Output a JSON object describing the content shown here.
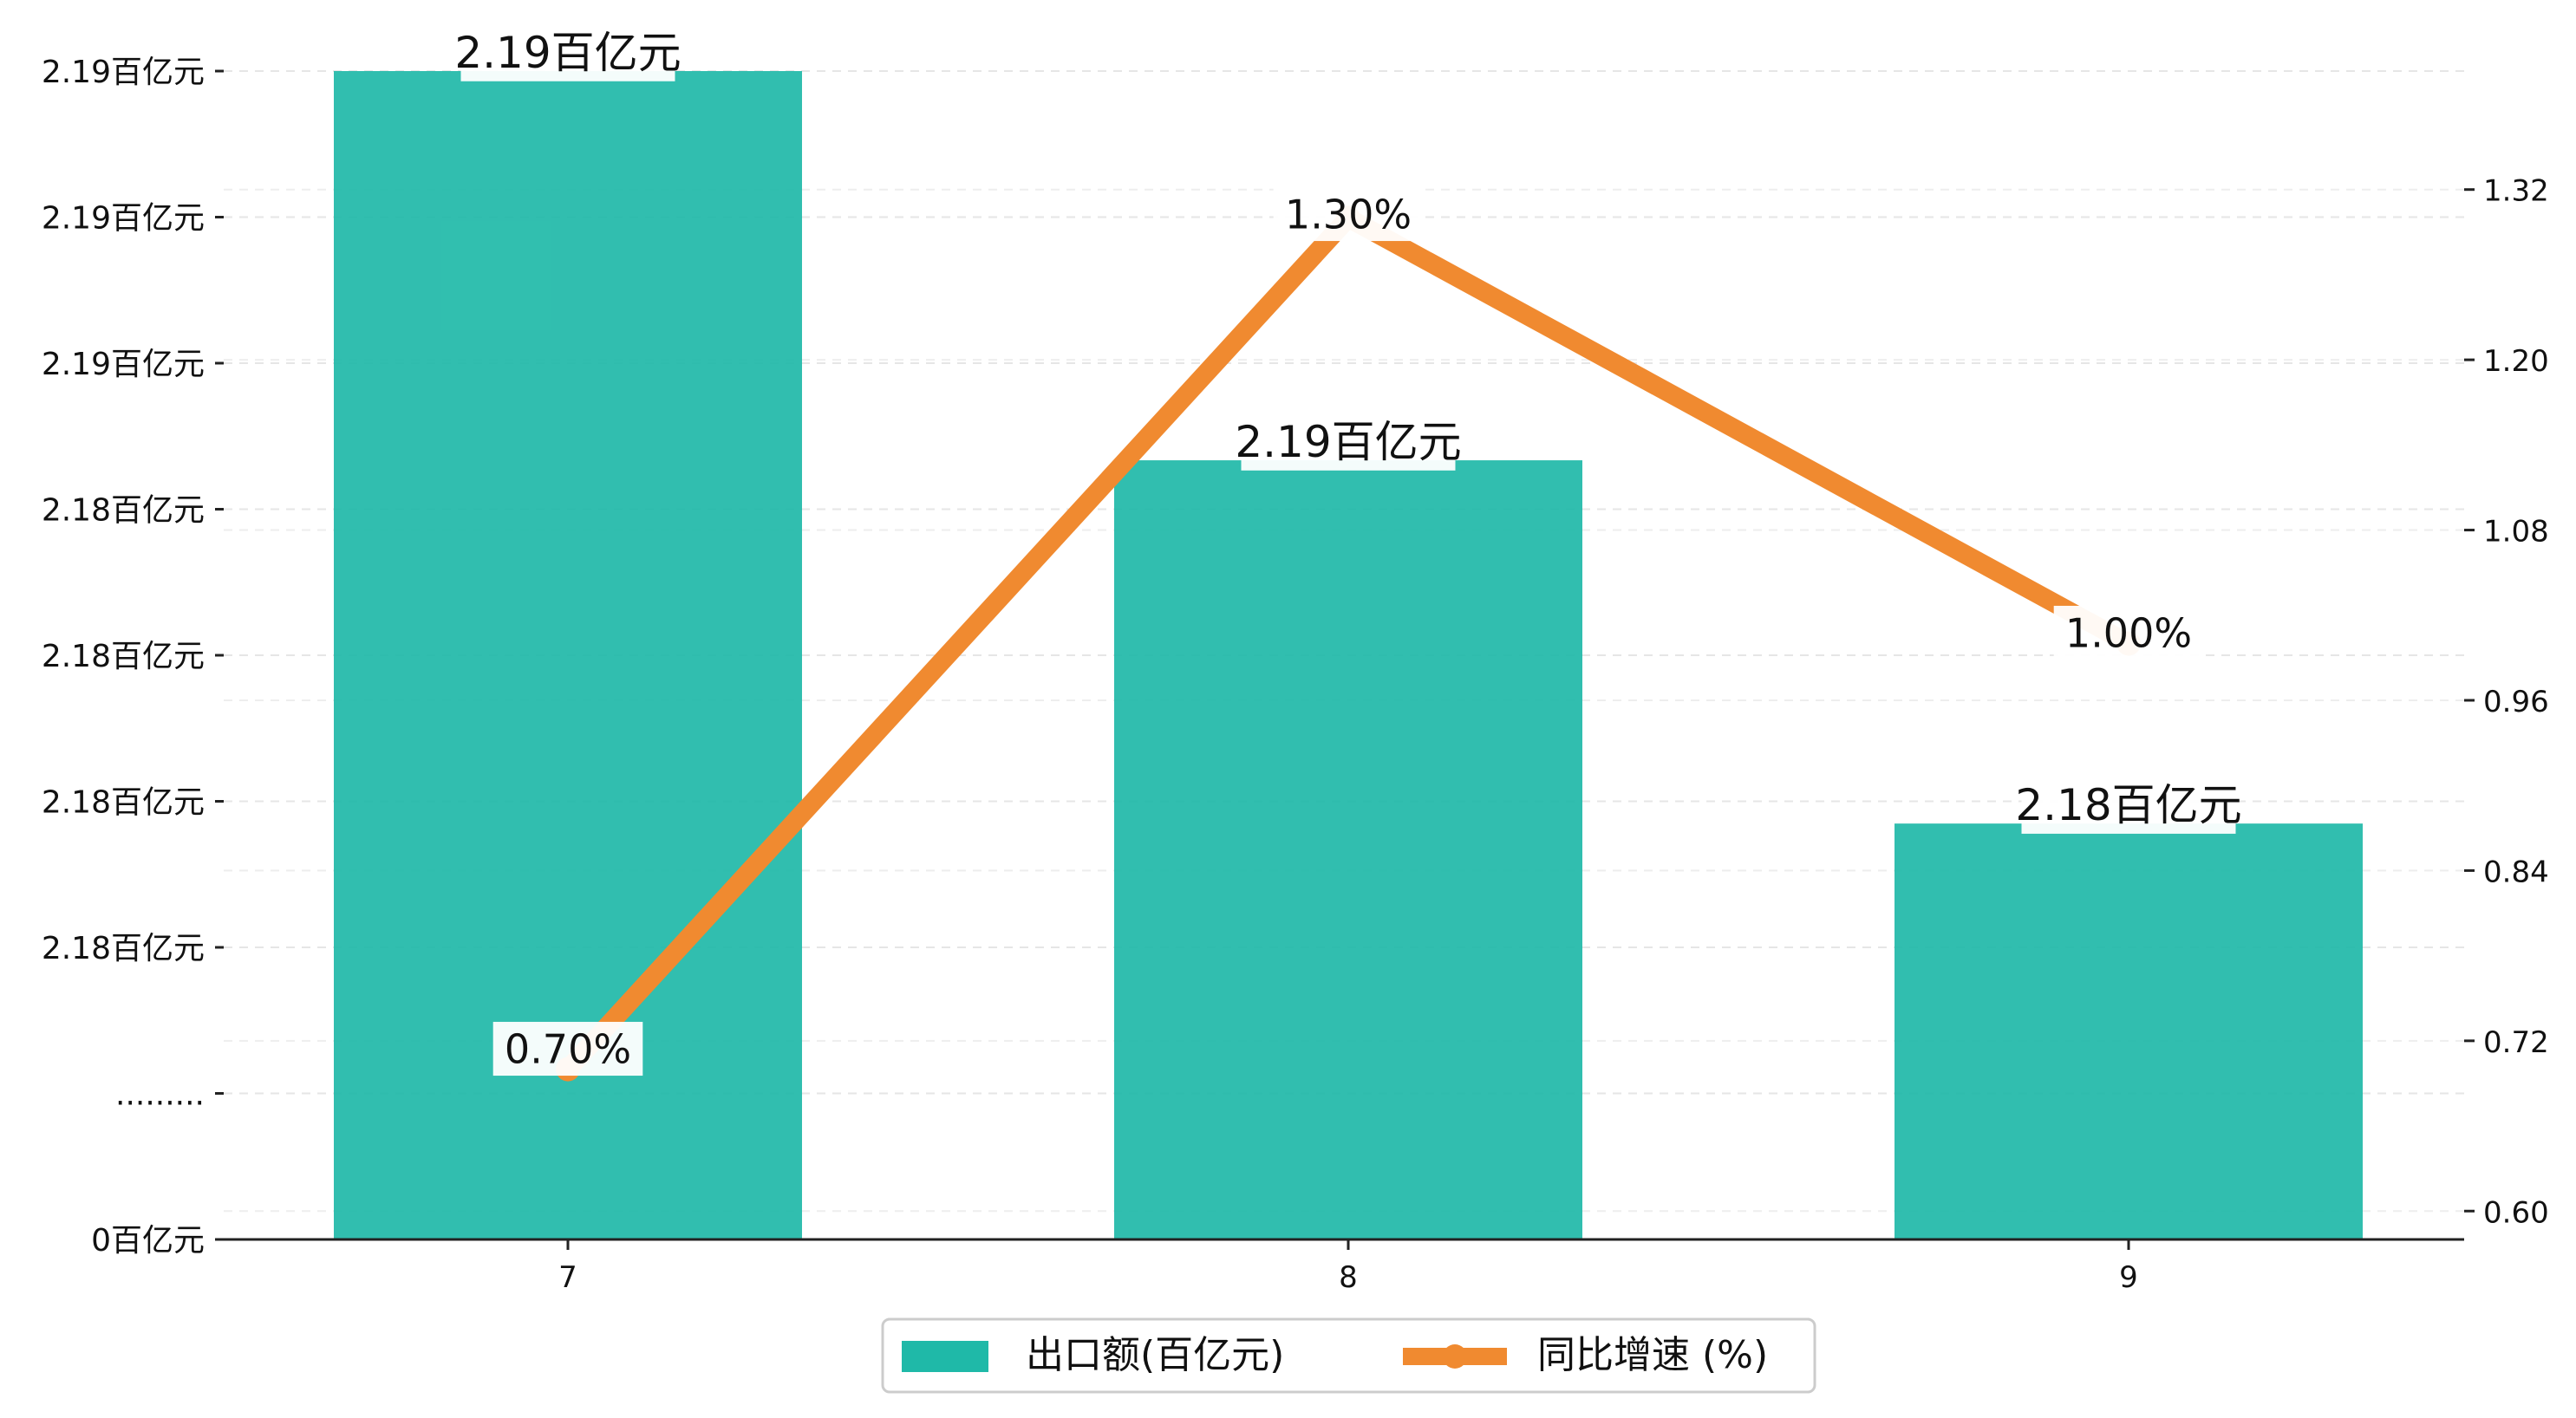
{
  "chart_data": {
    "type": "bar",
    "categories": [
      "7",
      "8",
      "9"
    ],
    "series": [
      {
        "name": "出口额(百亿元)",
        "type": "bar",
        "axis": "left",
        "values": [
          2.195,
          2.1875,
          2.1805
        ],
        "labels": [
          "2.19百亿元",
          "2.19百亿元",
          "2.18百亿元"
        ],
        "color": "#1fb9a8"
      },
      {
        "name": "同比增速 (%)",
        "type": "line",
        "axis": "right",
        "values": [
          0.7,
          1.3,
          1.0
        ],
        "labels": [
          "0.70%",
          "1.30%",
          "1.00%"
        ],
        "color": "#f08a30"
      }
    ],
    "y_left": {
      "ticks": [
        {
          "v": 0,
          "label": "0百亿元"
        },
        {
          "v": 1,
          "label": "........."
        },
        {
          "v": 2,
          "label": "2.18百亿元"
        },
        {
          "v": 3,
          "label": "2.18百亿元"
        },
        {
          "v": 4,
          "label": "2.18百亿元"
        },
        {
          "v": 5,
          "label": "2.18百亿元"
        },
        {
          "v": 6,
          "label": "2.19百亿元"
        },
        {
          "v": 7,
          "label": "2.19百亿元"
        },
        {
          "v": 8,
          "label": "2.19百亿元"
        }
      ],
      "broken_axis": {
        "v1": 1,
        "value_at_v1": 2.1753,
        "value_at_top": 2.195
      }
    },
    "y_right": {
      "ticks": [
        0.6,
        0.72,
        0.84,
        0.96,
        1.08,
        1.2,
        1.32
      ],
      "ylim": [
        0.58,
        1.42
      ]
    },
    "legend": {
      "placement": "bottom-center"
    },
    "grid": "horizontal-dashed",
    "title": "",
    "xlabel": "",
    "ylabel": ""
  }
}
